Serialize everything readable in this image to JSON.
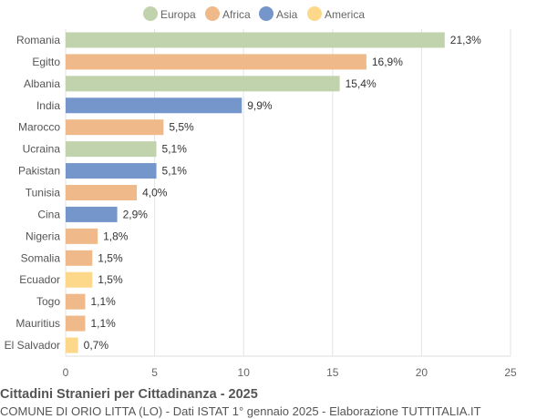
{
  "chart_data": {
    "type": "bar",
    "orientation": "horizontal",
    "title": "Cittadini Stranieri per Cittadinanza - 2025",
    "subtitle": "COMUNE DI ORIO LITTA (LO) - Dati ISTAT 1° gennaio 2025 - Elaborazione TUTTITALIA.IT",
    "categories": [
      "Romania",
      "Egitto",
      "Albania",
      "India",
      "Marocco",
      "Ucraina",
      "Pakistan",
      "Tunisia",
      "Cina",
      "Nigeria",
      "Somalia",
      "Ecuador",
      "Togo",
      "Mauritius",
      "El Salvador"
    ],
    "values": [
      21.3,
      16.9,
      15.4,
      9.9,
      5.5,
      5.1,
      5.1,
      4.0,
      2.9,
      1.8,
      1.5,
      1.5,
      1.1,
      1.1,
      0.7
    ],
    "value_labels": [
      "21,3%",
      "16,9%",
      "15,4%",
      "9,9%",
      "5,5%",
      "5,1%",
      "5,1%",
      "4,0%",
      "2,9%",
      "1,8%",
      "1,5%",
      "1,5%",
      "1,1%",
      "1,1%",
      "0,7%"
    ],
    "groups": [
      "Europa",
      "Africa",
      "Europa",
      "Asia",
      "Africa",
      "Europa",
      "Asia",
      "Africa",
      "Asia",
      "Africa",
      "Africa",
      "America",
      "Africa",
      "Africa",
      "America"
    ],
    "legend": [
      {
        "name": "Europa",
        "color": "#c1d3ad"
      },
      {
        "name": "Africa",
        "color": "#f0b989"
      },
      {
        "name": "Asia",
        "color": "#7596cb"
      },
      {
        "name": "America",
        "color": "#fdd88a"
      }
    ],
    "legend_position": "top",
    "xlim": [
      0,
      25
    ],
    "xticks": [
      0,
      5,
      10,
      15,
      20,
      25
    ],
    "grid": true
  }
}
